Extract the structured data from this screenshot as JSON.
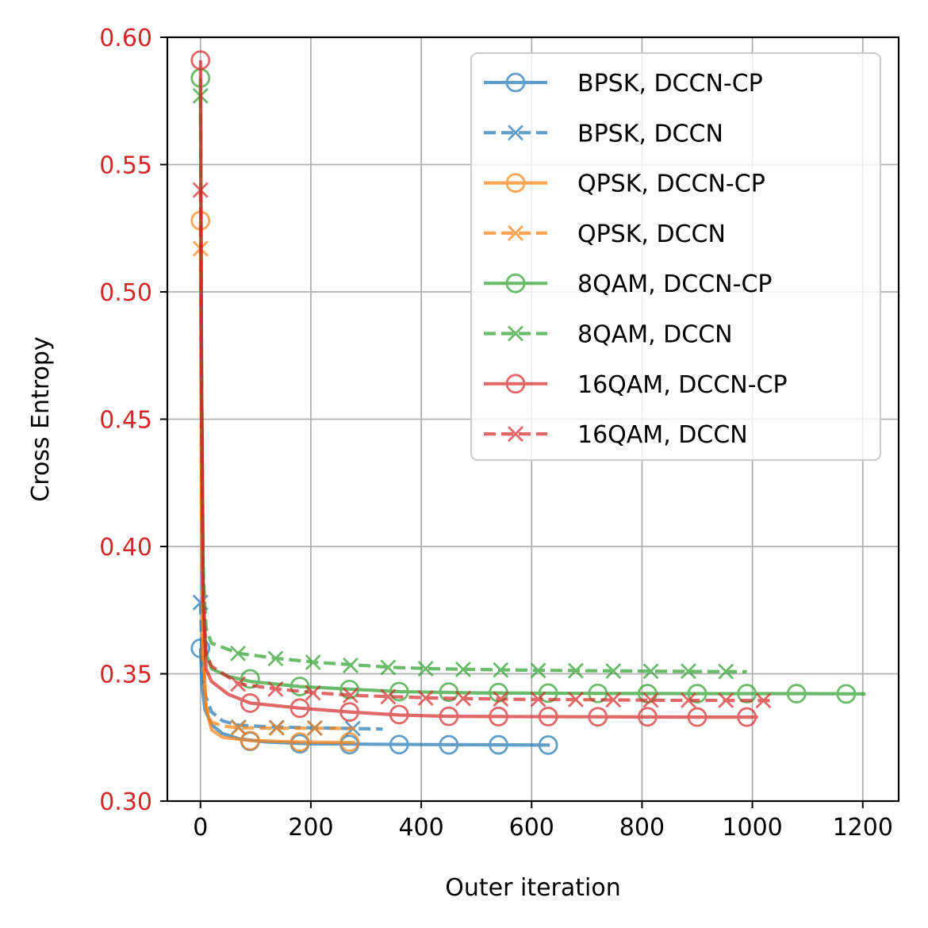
{
  "chart_data": {
    "type": "line",
    "title": "",
    "xlabel": "Outer iteration",
    "ylabel": "Cross Entropy",
    "ylabel_color": "#d62728",
    "xlim": [
      -60,
      1265
    ],
    "ylim": [
      0.3,
      0.6
    ],
    "xticks": [
      0,
      200,
      400,
      600,
      800,
      1000,
      1200
    ],
    "xtick_labels": [
      "0",
      "200",
      "400",
      "600",
      "800",
      "1000",
      "1200"
    ],
    "yticks": [
      0.3,
      0.35,
      0.4,
      0.45,
      0.5,
      0.55,
      0.6
    ],
    "ytick_labels": [
      "0.30",
      "0.35",
      "0.40",
      "0.45",
      "0.50",
      "0.55",
      "0.60"
    ],
    "grid": true,
    "legend_position": "top-right",
    "series": [
      {
        "name": "BPSK, DCCN-CP",
        "color": "#1f77b4",
        "linestyle": "solid",
        "marker": "circle",
        "line": [
          [
            0,
            0.36
          ],
          [
            3,
            0.345
          ],
          [
            8,
            0.336
          ],
          [
            20,
            0.33
          ],
          [
            40,
            0.3265
          ],
          [
            70,
            0.3245
          ],
          [
            120,
            0.3232
          ],
          [
            200,
            0.3225
          ],
          [
            400,
            0.3222
          ],
          [
            633,
            0.322
          ]
        ],
        "markers": [
          [
            0,
            0.36
          ],
          [
            90,
            0.3235
          ],
          [
            180,
            0.3225
          ],
          [
            270,
            0.3222
          ],
          [
            360,
            0.3222
          ],
          [
            450,
            0.3221
          ],
          [
            540,
            0.3221
          ],
          [
            630,
            0.322
          ]
        ]
      },
      {
        "name": "BPSK, DCCN",
        "color": "#1f77b4",
        "linestyle": "dashed",
        "marker": "x",
        "line": [
          [
            0,
            0.378
          ],
          [
            3,
            0.355
          ],
          [
            8,
            0.342
          ],
          [
            20,
            0.335
          ],
          [
            40,
            0.3315
          ],
          [
            70,
            0.3298
          ],
          [
            120,
            0.3292
          ],
          [
            200,
            0.3288
          ],
          [
            280,
            0.3285
          ],
          [
            330,
            0.3283
          ]
        ],
        "markers": [
          [
            0,
            0.378
          ],
          [
            69,
            0.329
          ],
          [
            138,
            0.3289
          ],
          [
            207,
            0.3287
          ],
          [
            276,
            0.3285
          ]
        ]
      },
      {
        "name": "QPSK, DCCN-CP",
        "color": "#ff7f0e",
        "linestyle": "solid",
        "marker": "circle",
        "line": [
          [
            0,
            0.528
          ],
          [
            2,
            0.42
          ],
          [
            5,
            0.36
          ],
          [
            10,
            0.337
          ],
          [
            20,
            0.328
          ],
          [
            40,
            0.325
          ],
          [
            90,
            0.3238
          ],
          [
            180,
            0.3232
          ],
          [
            280,
            0.323
          ]
        ],
        "markers": [
          [
            0,
            0.528
          ],
          [
            90,
            0.3237
          ],
          [
            180,
            0.3232
          ],
          [
            270,
            0.3232
          ]
        ]
      },
      {
        "name": "QPSK, DCCN",
        "color": "#ff7f0e",
        "linestyle": "dashed",
        "marker": "x",
        "line": [
          [
            0,
            0.517
          ],
          [
            2,
            0.41
          ],
          [
            5,
            0.355
          ],
          [
            10,
            0.337
          ],
          [
            20,
            0.331
          ],
          [
            40,
            0.3295
          ],
          [
            70,
            0.3288
          ],
          [
            140,
            0.3286
          ],
          [
            210,
            0.3286
          ],
          [
            280,
            0.3285
          ]
        ],
        "markers": [
          [
            0,
            0.517
          ],
          [
            69,
            0.3288
          ],
          [
            138,
            0.3287
          ],
          [
            207,
            0.3287
          ]
        ]
      },
      {
        "name": "8QAM, DCCN-CP",
        "color": "#2ca02c",
        "linestyle": "solid",
        "marker": "circle",
        "line": [
          [
            0,
            0.584
          ],
          [
            2,
            0.47
          ],
          [
            5,
            0.38
          ],
          [
            10,
            0.358
          ],
          [
            20,
            0.352
          ],
          [
            50,
            0.349
          ],
          [
            90,
            0.347
          ],
          [
            180,
            0.345
          ],
          [
            270,
            0.344
          ],
          [
            360,
            0.343
          ],
          [
            500,
            0.3425
          ],
          [
            700,
            0.3423
          ],
          [
            900,
            0.3422
          ],
          [
            1100,
            0.3422
          ],
          [
            1205,
            0.3421
          ]
        ],
        "markers": [
          [
            0,
            0.584
          ],
          [
            90,
            0.348
          ],
          [
            180,
            0.345
          ],
          [
            270,
            0.3438
          ],
          [
            360,
            0.343
          ],
          [
            450,
            0.3428
          ],
          [
            540,
            0.3426
          ],
          [
            630,
            0.3424
          ],
          [
            720,
            0.3423
          ],
          [
            810,
            0.3422
          ],
          [
            900,
            0.3422
          ],
          [
            990,
            0.3422
          ],
          [
            1080,
            0.3422
          ],
          [
            1170,
            0.3421
          ]
        ]
      },
      {
        "name": "8QAM, DCCN",
        "color": "#2ca02c",
        "linestyle": "dashed",
        "marker": "x",
        "line": [
          [
            0,
            0.577
          ],
          [
            2,
            0.47
          ],
          [
            5,
            0.39
          ],
          [
            10,
            0.368
          ],
          [
            20,
            0.362
          ],
          [
            70,
            0.358
          ],
          [
            140,
            0.356
          ],
          [
            210,
            0.3545
          ],
          [
            280,
            0.3535
          ],
          [
            350,
            0.3525
          ],
          [
            420,
            0.352
          ],
          [
            560,
            0.3515
          ],
          [
            700,
            0.3512
          ],
          [
            840,
            0.351
          ],
          [
            990,
            0.3508
          ]
        ],
        "markers": [
          [
            0,
            0.577
          ],
          [
            68,
            0.358
          ],
          [
            136,
            0.356
          ],
          [
            204,
            0.3545
          ],
          [
            272,
            0.3533
          ],
          [
            340,
            0.3525
          ],
          [
            408,
            0.352
          ],
          [
            476,
            0.3517
          ],
          [
            544,
            0.3515
          ],
          [
            612,
            0.3513
          ],
          [
            680,
            0.3512
          ],
          [
            748,
            0.3511
          ],
          [
            816,
            0.351
          ],
          [
            884,
            0.351
          ],
          [
            952,
            0.3509
          ]
        ]
      },
      {
        "name": "16QAM, DCCN-CP",
        "color": "#d62728",
        "linestyle": "solid",
        "marker": "circle",
        "line": [
          [
            0,
            0.591
          ],
          [
            2,
            0.47
          ],
          [
            5,
            0.38
          ],
          [
            10,
            0.352
          ],
          [
            20,
            0.347
          ],
          [
            50,
            0.342
          ],
          [
            90,
            0.3385
          ],
          [
            180,
            0.3365
          ],
          [
            270,
            0.335
          ],
          [
            360,
            0.3338
          ],
          [
            450,
            0.3333
          ],
          [
            540,
            0.3332
          ],
          [
            700,
            0.3331
          ],
          [
            900,
            0.333
          ],
          [
            1010,
            0.333
          ]
        ],
        "markers": [
          [
            0,
            0.591
          ],
          [
            90,
            0.3385
          ],
          [
            180,
            0.3365
          ],
          [
            270,
            0.335
          ],
          [
            360,
            0.334
          ],
          [
            450,
            0.3333
          ],
          [
            540,
            0.3332
          ],
          [
            630,
            0.3332
          ],
          [
            720,
            0.3331
          ],
          [
            810,
            0.3331
          ],
          [
            900,
            0.333
          ],
          [
            990,
            0.333
          ]
        ]
      },
      {
        "name": "16QAM, DCCN",
        "color": "#d62728",
        "linestyle": "dashed",
        "marker": "x",
        "line": [
          [
            0,
            0.54
          ],
          [
            2,
            0.45
          ],
          [
            5,
            0.38
          ],
          [
            10,
            0.358
          ],
          [
            20,
            0.353
          ],
          [
            70,
            0.346
          ],
          [
            140,
            0.344
          ],
          [
            210,
            0.3425
          ],
          [
            280,
            0.3415
          ],
          [
            420,
            0.3405
          ],
          [
            560,
            0.34
          ],
          [
            700,
            0.3398
          ],
          [
            840,
            0.3396
          ],
          [
            1000,
            0.3395
          ],
          [
            1035,
            0.3395
          ]
        ],
        "markers": [
          [
            0,
            0.54
          ],
          [
            68,
            0.346
          ],
          [
            136,
            0.344
          ],
          [
            204,
            0.3425
          ],
          [
            272,
            0.3415
          ],
          [
            340,
            0.341
          ],
          [
            408,
            0.3405
          ],
          [
            476,
            0.3403
          ],
          [
            544,
            0.3401
          ],
          [
            612,
            0.34
          ],
          [
            680,
            0.3399
          ],
          [
            748,
            0.3398
          ],
          [
            816,
            0.3397
          ],
          [
            884,
            0.3396
          ],
          [
            952,
            0.3396
          ],
          [
            1020,
            0.3395
          ]
        ]
      }
    ]
  }
}
